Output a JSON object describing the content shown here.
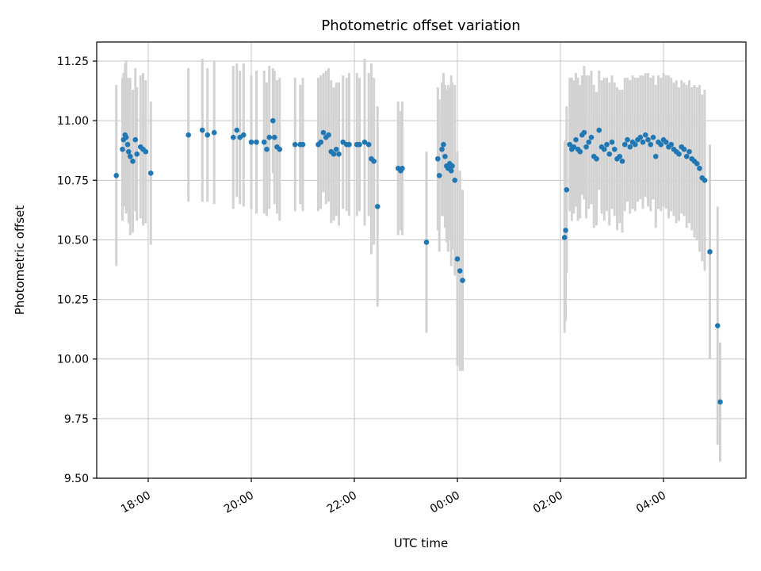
{
  "chart_data": {
    "type": "scatter",
    "title": "Photometric offset variation",
    "xlabel": "UTC time",
    "ylabel": "Photometric offset",
    "grid": true,
    "point_color": "#1f77b4",
    "errorbar_color": "#d2d2d2",
    "grid_color": "#c6c6c6",
    "axis_color": "#000000",
    "xlim": [
      0.0,
      12.6
    ],
    "ylim": [
      9.5,
      11.33
    ],
    "x_ticks": [
      {
        "pos": 1,
        "label": "18:00"
      },
      {
        "pos": 3,
        "label": "20:00"
      },
      {
        "pos": 5,
        "label": "22:00"
      },
      {
        "pos": 7,
        "label": "00:00"
      },
      {
        "pos": 9,
        "label": "02:00"
      },
      {
        "pos": 11,
        "label": "04:00"
      }
    ],
    "y_ticks": [
      {
        "pos": 9.5,
        "label": "9.50"
      },
      {
        "pos": 9.75,
        "label": "9.75"
      },
      {
        "pos": 10.0,
        "label": "10.00"
      },
      {
        "pos": 10.25,
        "label": "10.25"
      },
      {
        "pos": 10.5,
        "label": "10.50"
      },
      {
        "pos": 10.75,
        "label": "10.75"
      },
      {
        "pos": 11.0,
        "label": "11.00"
      },
      {
        "pos": 11.25,
        "label": "11.25"
      }
    ],
    "points_format": "[utc_hours_offset_from_17:00, photometric_offset, error]",
    "points": [
      [
        0.38,
        10.77,
        0.38
      ],
      [
        0.5,
        10.88,
        0.3
      ],
      [
        0.52,
        10.92,
        0.28
      ],
      [
        0.55,
        10.94,
        0.3
      ],
      [
        0.57,
        10.93,
        0.32
      ],
      [
        0.6,
        10.9,
        0.28
      ],
      [
        0.62,
        10.87,
        0.3
      ],
      [
        0.65,
        10.85,
        0.33
      ],
      [
        0.7,
        10.83,
        0.3
      ],
      [
        0.75,
        10.92,
        0.3
      ],
      [
        0.78,
        10.86,
        0.28
      ],
      [
        0.85,
        10.89,
        0.3
      ],
      [
        0.9,
        10.88,
        0.32
      ],
      [
        0.95,
        10.87,
        0.3
      ],
      [
        1.05,
        10.78,
        0.3
      ],
      [
        1.78,
        10.94,
        0.28
      ],
      [
        2.05,
        10.96,
        0.3
      ],
      [
        2.15,
        10.94,
        0.28
      ],
      [
        2.28,
        10.95,
        0.3
      ],
      [
        2.65,
        10.93,
        0.3
      ],
      [
        2.72,
        10.96,
        0.28
      ],
      [
        2.78,
        10.93,
        0.28
      ],
      [
        2.85,
        10.94,
        0.3
      ],
      [
        3.0,
        10.91,
        0.28
      ],
      [
        3.1,
        10.91,
        0.3
      ],
      [
        3.25,
        10.91,
        0.3
      ],
      [
        3.3,
        10.88,
        0.28
      ],
      [
        3.35,
        10.93,
        0.3
      ],
      [
        3.42,
        11.0,
        0.22
      ],
      [
        3.45,
        10.93,
        0.28
      ],
      [
        3.5,
        10.89,
        0.28
      ],
      [
        3.55,
        10.88,
        0.3
      ],
      [
        3.85,
        10.9,
        0.28
      ],
      [
        3.95,
        10.9,
        0.25
      ],
      [
        4.0,
        10.9,
        0.28
      ],
      [
        4.3,
        10.9,
        0.28
      ],
      [
        4.35,
        10.91,
        0.28
      ],
      [
        4.4,
        10.95,
        0.25
      ],
      [
        4.45,
        10.93,
        0.28
      ],
      [
        4.5,
        10.94,
        0.28
      ],
      [
        4.55,
        10.87,
        0.3
      ],
      [
        4.6,
        10.86,
        0.28
      ],
      [
        4.65,
        10.88,
        0.28
      ],
      [
        4.7,
        10.86,
        0.3
      ],
      [
        4.78,
        10.91,
        0.28
      ],
      [
        4.85,
        10.9,
        0.28
      ],
      [
        4.9,
        10.9,
        0.3
      ],
      [
        5.05,
        10.9,
        0.3
      ],
      [
        5.1,
        10.9,
        0.28
      ],
      [
        5.2,
        10.91,
        0.35
      ],
      [
        5.28,
        10.9,
        0.3
      ],
      [
        5.33,
        10.84,
        0.4
      ],
      [
        5.38,
        10.83,
        0.35
      ],
      [
        5.45,
        10.64,
        0.42
      ],
      [
        5.85,
        10.8,
        0.28
      ],
      [
        5.9,
        10.79,
        0.25
      ],
      [
        5.93,
        10.8,
        0.28
      ],
      [
        6.4,
        10.49,
        0.38
      ],
      [
        6.62,
        10.84,
        0.3
      ],
      [
        6.65,
        10.77,
        0.32
      ],
      [
        6.7,
        10.88,
        0.28
      ],
      [
        6.73,
        10.9,
        0.3
      ],
      [
        6.76,
        10.85,
        0.3
      ],
      [
        6.79,
        10.81,
        0.32
      ],
      [
        6.82,
        10.8,
        0.35
      ],
      [
        6.85,
        10.82,
        0.32
      ],
      [
        6.88,
        10.79,
        0.4
      ],
      [
        6.9,
        10.81,
        0.35
      ],
      [
        6.95,
        10.75,
        0.4
      ],
      [
        7.0,
        10.42,
        0.45
      ],
      [
        7.05,
        10.37,
        0.42
      ],
      [
        7.1,
        10.33,
        0.38
      ],
      [
        9.08,
        10.51,
        0.4
      ],
      [
        9.1,
        10.54,
        0.38
      ],
      [
        9.12,
        10.71,
        0.35
      ],
      [
        9.18,
        10.9,
        0.28
      ],
      [
        9.22,
        10.88,
        0.3
      ],
      [
        9.26,
        10.89,
        0.28
      ],
      [
        9.3,
        10.92,
        0.28
      ],
      [
        9.34,
        10.88,
        0.3
      ],
      [
        9.38,
        10.87,
        0.28
      ],
      [
        9.42,
        10.94,
        0.25
      ],
      [
        9.46,
        10.95,
        0.28
      ],
      [
        9.5,
        10.89,
        0.3
      ],
      [
        9.55,
        10.91,
        0.28
      ],
      [
        9.6,
        10.93,
        0.28
      ],
      [
        9.65,
        10.85,
        0.3
      ],
      [
        9.7,
        10.84,
        0.28
      ],
      [
        9.75,
        10.96,
        0.25
      ],
      [
        9.8,
        10.89,
        0.28
      ],
      [
        9.85,
        10.88,
        0.3
      ],
      [
        9.9,
        10.9,
        0.28
      ],
      [
        9.95,
        10.86,
        0.3
      ],
      [
        10.0,
        10.91,
        0.28
      ],
      [
        10.05,
        10.88,
        0.28
      ],
      [
        10.1,
        10.84,
        0.3
      ],
      [
        10.15,
        10.85,
        0.28
      ],
      [
        10.2,
        10.83,
        0.3
      ],
      [
        10.25,
        10.9,
        0.28
      ],
      [
        10.3,
        10.92,
        0.26
      ],
      [
        10.35,
        10.89,
        0.28
      ],
      [
        10.4,
        10.91,
        0.28
      ],
      [
        10.45,
        10.9,
        0.28
      ],
      [
        10.5,
        10.92,
        0.26
      ],
      [
        10.55,
        10.93,
        0.26
      ],
      [
        10.6,
        10.91,
        0.28
      ],
      [
        10.65,
        10.94,
        0.26
      ],
      [
        10.7,
        10.92,
        0.28
      ],
      [
        10.75,
        10.9,
        0.28
      ],
      [
        10.8,
        10.93,
        0.26
      ],
      [
        10.85,
        10.85,
        0.3
      ],
      [
        10.9,
        10.91,
        0.28
      ],
      [
        10.95,
        10.9,
        0.28
      ],
      [
        11.0,
        10.92,
        0.28
      ],
      [
        11.05,
        10.91,
        0.28
      ],
      [
        11.1,
        10.89,
        0.3
      ],
      [
        11.15,
        10.9,
        0.28
      ],
      [
        11.2,
        10.88,
        0.28
      ],
      [
        11.25,
        10.87,
        0.3
      ],
      [
        11.3,
        10.86,
        0.28
      ],
      [
        11.35,
        10.89,
        0.28
      ],
      [
        11.4,
        10.88,
        0.28
      ],
      [
        11.45,
        10.85,
        0.3
      ],
      [
        11.5,
        10.87,
        0.3
      ],
      [
        11.55,
        10.84,
        0.3
      ],
      [
        11.6,
        10.83,
        0.32
      ],
      [
        11.65,
        10.82,
        0.32
      ],
      [
        11.7,
        10.8,
        0.35
      ],
      [
        11.75,
        10.76,
        0.35
      ],
      [
        11.8,
        10.75,
        0.38
      ],
      [
        11.9,
        10.45,
        0.45
      ],
      [
        12.05,
        10.14,
        0.5
      ],
      [
        12.1,
        9.82,
        0.25
      ]
    ]
  }
}
